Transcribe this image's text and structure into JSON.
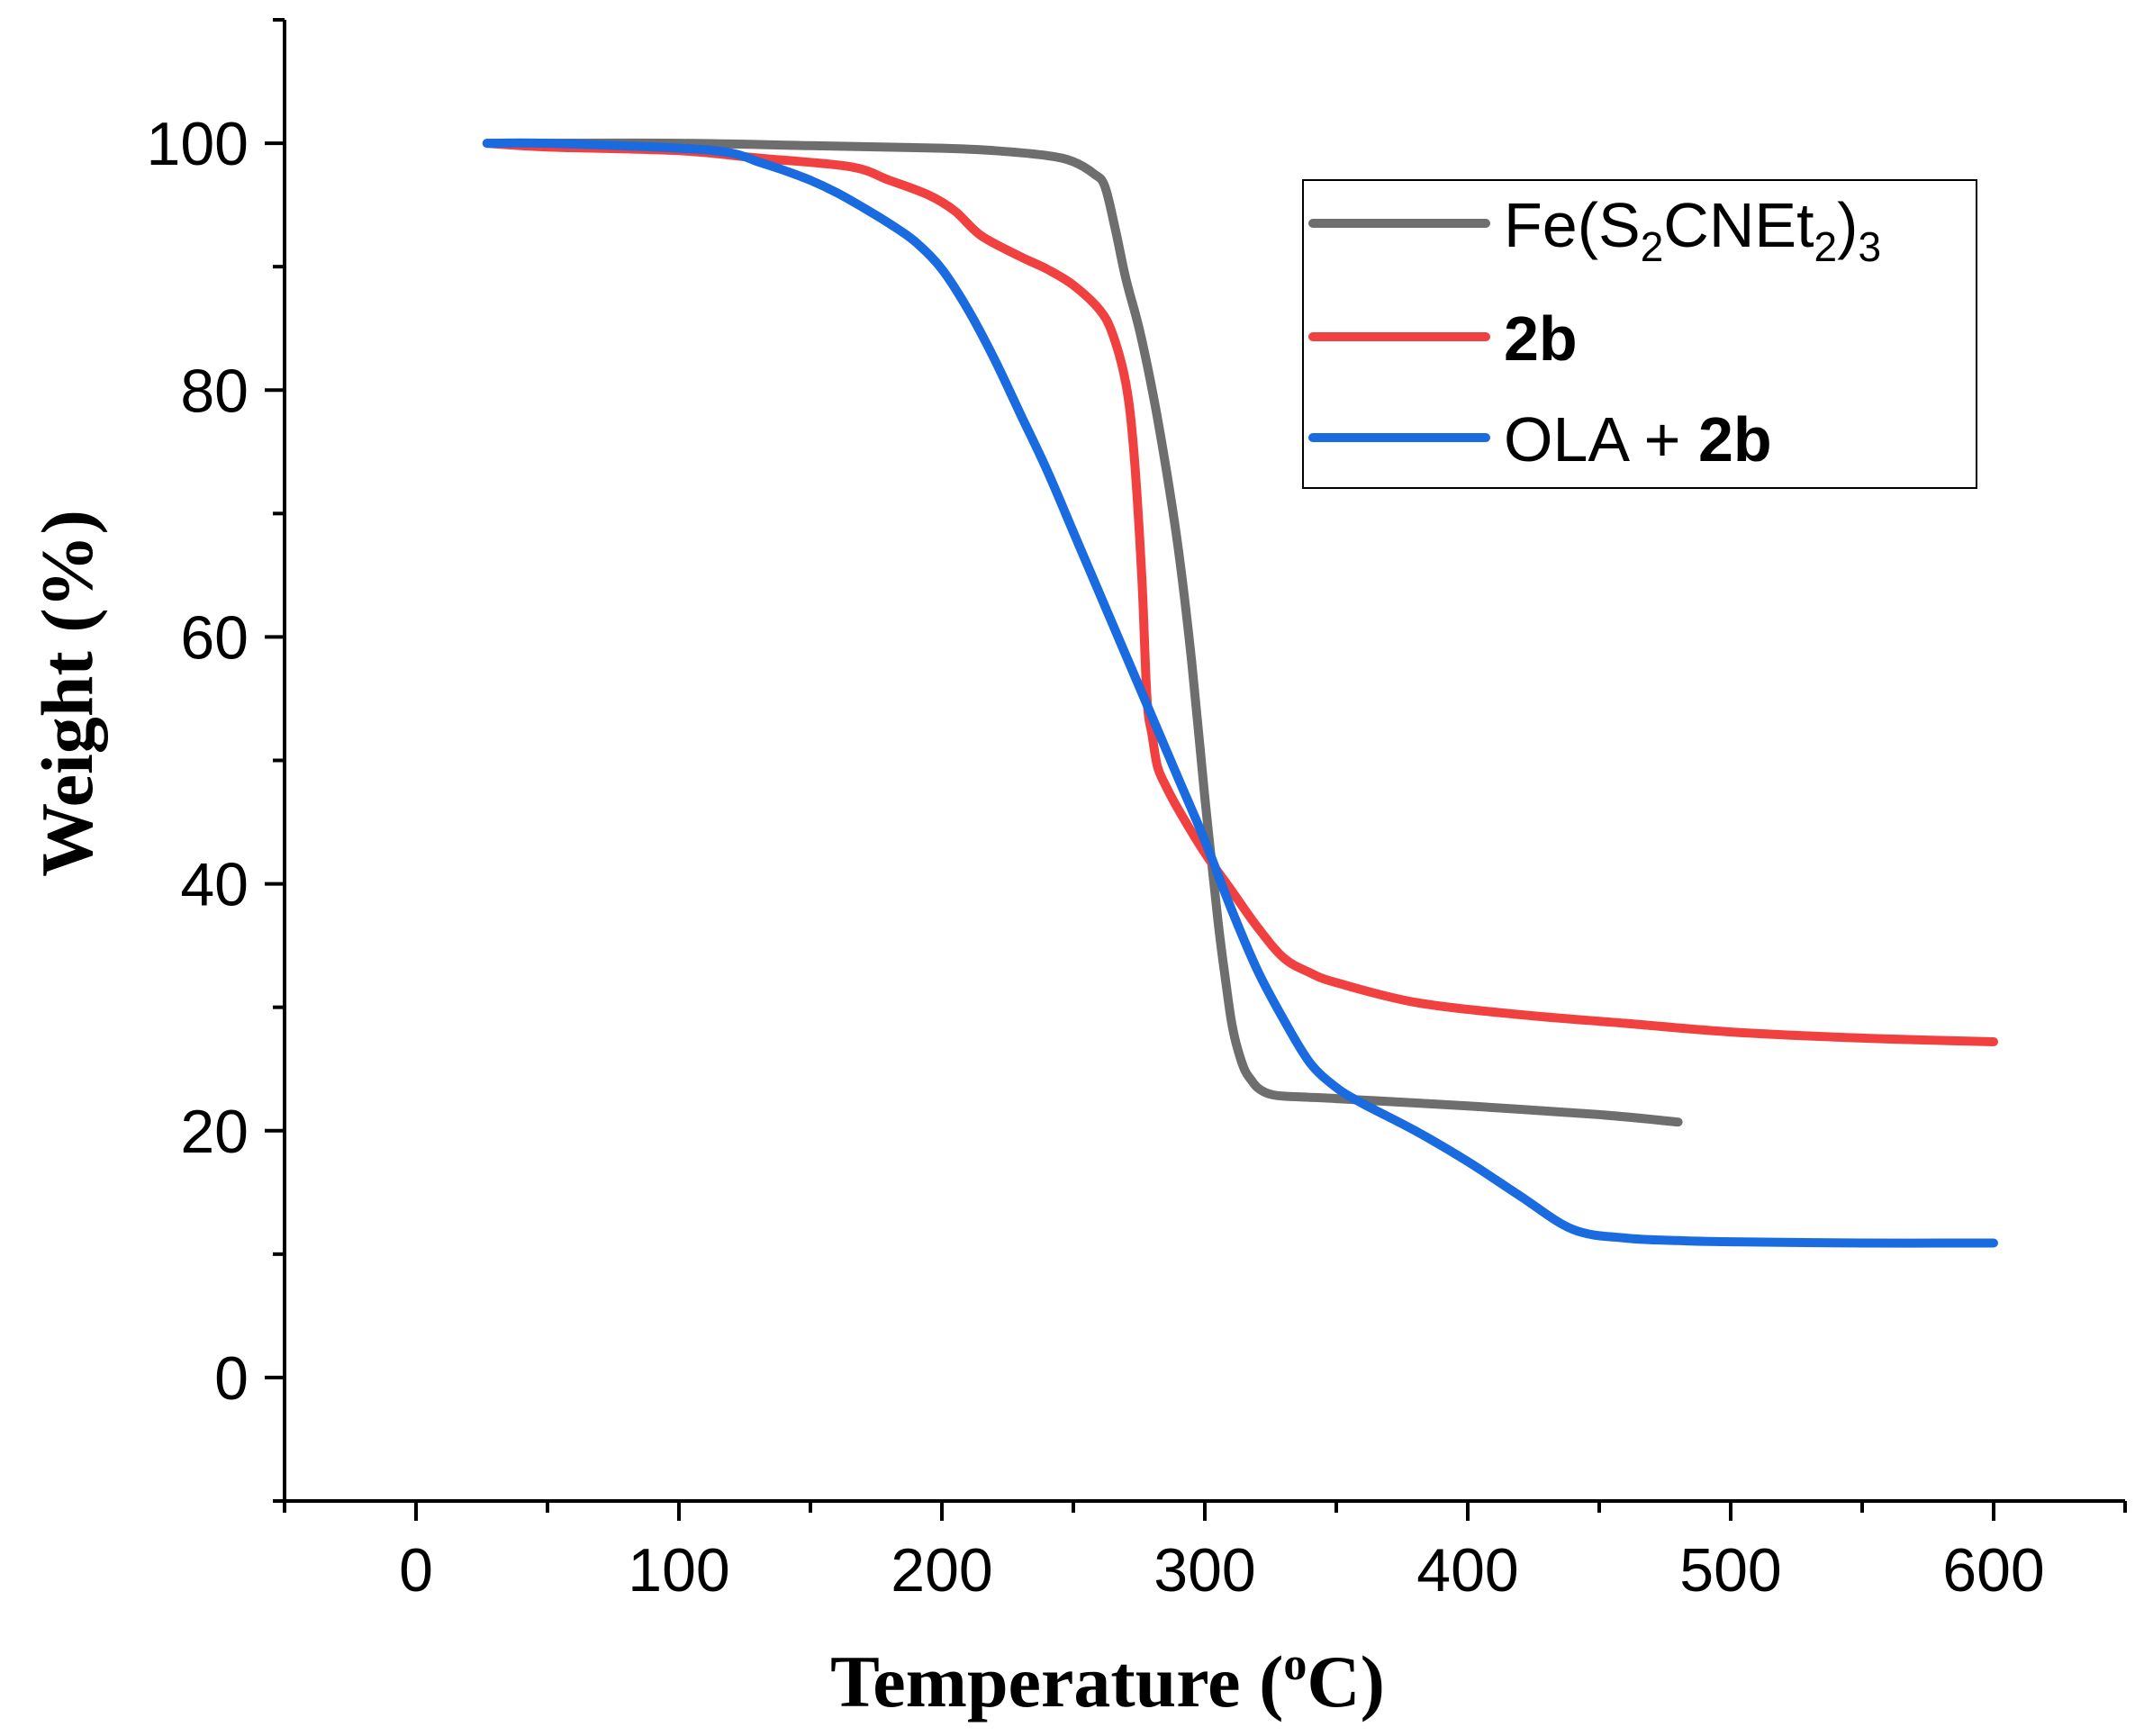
{
  "chart_data": {
    "type": "line",
    "title": "",
    "xlabel": "Temperature",
    "xlabel_unit_open": "(",
    "xlabel_unit_sup": "o",
    "xlabel_unit_rest": "C)",
    "ylabel": "Weight (%)",
    "xlim": [
      -50,
      650
    ],
    "ylim": [
      -10,
      110
    ],
    "xticks": [
      0,
      100,
      200,
      300,
      400,
      500,
      600
    ],
    "yticks": [
      0,
      20,
      40,
      60,
      80,
      100
    ],
    "grid": false,
    "legend_position": "top-right",
    "legend": {
      "fe_base": "Fe(S",
      "fe_sub1": "2",
      "fe_mid": "CNEt",
      "fe_sub2": "2",
      "fe_close": ")",
      "fe_sub3": "3",
      "red_label": "2b",
      "blue_prefix": "OLA + ",
      "blue_bold": "2b"
    },
    "series": [
      {
        "name": "Fe(S2CNEt2)3",
        "color": "#6e6e6e",
        "x": [
          27,
          50,
          100,
          150,
          200,
          220,
          240,
          250,
          258,
          262,
          266,
          270,
          275,
          280,
          285,
          290,
          295,
          300,
          305,
          308,
          310,
          312,
          315,
          318,
          320,
          323,
          326,
          330,
          340,
          350,
          400,
          450,
          480
        ],
        "y": [
          100,
          100,
          100,
          99.8,
          99.6,
          99.4,
          99,
          98.5,
          97.5,
          96.5,
          93,
          89,
          85,
          80,
          74,
          67,
          58,
          47,
          37,
          32,
          29,
          27,
          25,
          24,
          23.5,
          23.1,
          22.9,
          22.8,
          22.7,
          22.6,
          22,
          21.3,
          20.7
        ]
      },
      {
        "name": "2b",
        "color": "#f04040",
        "x": [
          27,
          50,
          100,
          130,
          165,
          180,
          195,
          205,
          215,
          230,
          240,
          250,
          260,
          265,
          270,
          273,
          276,
          278,
          280,
          282,
          285,
          290,
          300,
          310,
          320,
          330,
          340,
          350,
          380,
          420,
          460,
          500,
          550,
          600
        ],
        "y": [
          100,
          99.7,
          99.4,
          98.8,
          98.1,
          97,
          95.8,
          94.5,
          92.5,
          90.8,
          89.8,
          88.5,
          86.5,
          84.5,
          80.5,
          75,
          65,
          55,
          52,
          49.5,
          48,
          46,
          42.5,
          39.5,
          36.5,
          34,
          32.8,
          32,
          30.4,
          29.4,
          28.7,
          28,
          27.5,
          27.2
        ]
      },
      {
        "name": "OLA + 2b",
        "color": "#1a6ae0",
        "x": [
          27,
          50,
          100,
          120,
          130,
          140,
          150,
          160,
          170,
          180,
          190,
          200,
          210,
          220,
          230,
          240,
          250,
          260,
          270,
          280,
          290,
          300,
          310,
          320,
          330,
          340,
          350,
          360,
          380,
          400,
          420,
          440,
          460,
          480,
          500,
          550,
          600
        ],
        "y": [
          100,
          100,
          99.6,
          99.2,
          98.5,
          97.8,
          97,
          96,
          94.8,
          93.5,
          92,
          89.8,
          86.5,
          82.5,
          78,
          73.5,
          68.5,
          63.5,
          58.5,
          53.5,
          48.5,
          43.5,
          38,
          33,
          29,
          25.5,
          23.5,
          22.2,
          20,
          17.5,
          14.7,
          12,
          11.3,
          11.1,
          11,
          10.9,
          10.9
        ]
      }
    ]
  }
}
